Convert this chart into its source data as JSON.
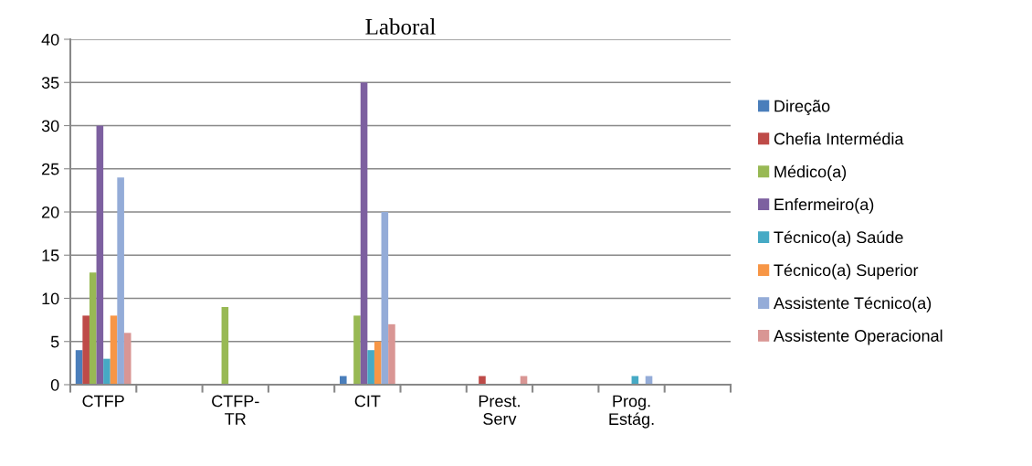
{
  "chart_data": {
    "type": "bar",
    "title": "Laboral",
    "categories": [
      "CTFP",
      null,
      "CTFP-\nTR",
      null,
      "CIT",
      null,
      "Prest.\nServ",
      null,
      "Prog.\nEstág.",
      null
    ],
    "series": [
      {
        "name": "Direção",
        "color": "#4a7ebb",
        "values": [
          4,
          null,
          0,
          null,
          1,
          null,
          0,
          null,
          0,
          null
        ]
      },
      {
        "name": "Chefia Intermédia",
        "color": "#be4b48",
        "values": [
          8,
          null,
          0,
          null,
          0,
          null,
          1,
          null,
          0,
          null
        ]
      },
      {
        "name": "Médico(a)",
        "color": "#98b954",
        "values": [
          13,
          null,
          9,
          null,
          8,
          null,
          0,
          null,
          0,
          null
        ]
      },
      {
        "name": "Enfermeiro(a)",
        "color": "#7d60a0",
        "values": [
          30,
          null,
          0,
          null,
          35,
          null,
          0,
          null,
          0,
          null
        ]
      },
      {
        "name": "Técnico(a) Saúde",
        "color": "#46aac5",
        "values": [
          3,
          null,
          0,
          null,
          4,
          null,
          0,
          null,
          1,
          null
        ]
      },
      {
        "name": "Técnico(a) Superior",
        "color": "#f79646",
        "values": [
          8,
          null,
          0,
          null,
          5,
          null,
          0,
          null,
          0,
          null
        ]
      },
      {
        "name": "Assistente Técnico(a)",
        "color": "#94acd8",
        "values": [
          24,
          null,
          0,
          null,
          20,
          null,
          0,
          null,
          1,
          null
        ]
      },
      {
        "name": "Assistente Operacional",
        "color": "#d99694",
        "values": [
          6,
          null,
          0,
          null,
          7,
          null,
          1,
          null,
          0,
          null
        ]
      }
    ],
    "ylim": [
      0,
      40
    ],
    "yticks": [
      0,
      5,
      10,
      15,
      20,
      25,
      30,
      35,
      40
    ],
    "grid": "y",
    "legend": "right"
  }
}
